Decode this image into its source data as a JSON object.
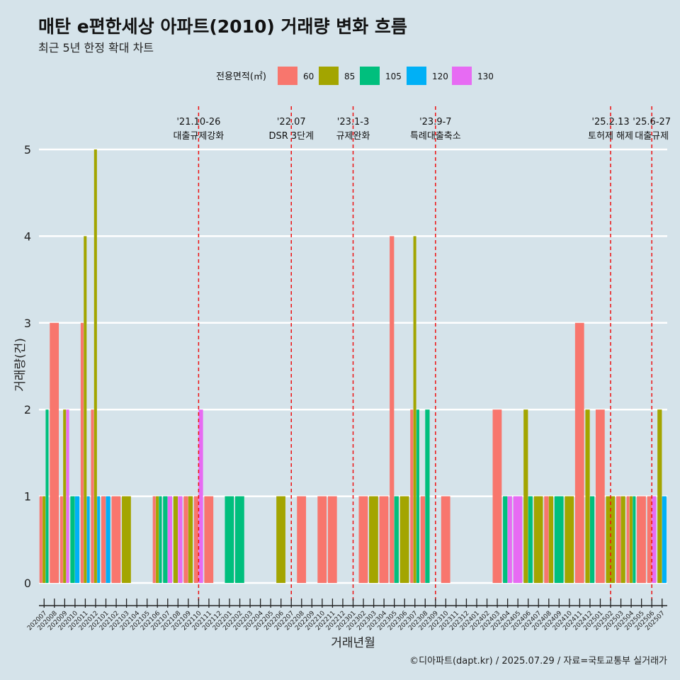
{
  "chart_data": {
    "type": "bar",
    "title": "매탄 e편한세상 아파트(2010) 거래량 변화 흐름",
    "subtitle": "최근 5년 한정 확대 차트",
    "xlabel": "거래년월",
    "ylabel": "거래량(건)",
    "caption": "©디아파트(dapt.kr) / 2025.07.29 / 자료=국토교통부 실거래가",
    "ylim": [
      0,
      5
    ],
    "yticks": [
      "0",
      "1",
      "2",
      "3",
      "4",
      "5"
    ],
    "legend": {
      "title": "전용면적(㎡)",
      "position": "top",
      "items": [
        {
          "label": "60",
          "color": "#f8766d"
        },
        {
          "label": "85",
          "color": "#a3a500"
        },
        {
          "label": "105",
          "color": "#00bf7d"
        },
        {
          "label": "120",
          "color": "#00b0f6"
        },
        {
          "label": "130",
          "color": "#e76bf3"
        }
      ]
    },
    "categories": [
      "202007",
      "202008",
      "202009",
      "202010",
      "202011",
      "202012",
      "202101",
      "202102",
      "202103",
      "202104",
      "202105",
      "202106",
      "202107",
      "202108",
      "202109",
      "202110",
      "202111",
      "202112",
      "202201",
      "202202",
      "202203",
      "202204",
      "202205",
      "202206",
      "202207",
      "202208",
      "202209",
      "202210",
      "202211",
      "202212",
      "202301",
      "202302",
      "202303",
      "202304",
      "202305",
      "202306",
      "202307",
      "202308",
      "202309",
      "202310",
      "202311",
      "202312",
      "202401",
      "202402",
      "202403",
      "202404",
      "202405",
      "202406",
      "202407",
      "202408",
      "202409",
      "202410",
      "202411",
      "202412",
      "202501",
      "202502",
      "202503",
      "202504",
      "202505",
      "202506",
      "202507"
    ],
    "series": [
      {
        "name": "60",
        "values": [
          1,
          3,
          1,
          0,
          3,
          2,
          1,
          1,
          0,
          0,
          0,
          1,
          0,
          0,
          1,
          1,
          1,
          0,
          0,
          0,
          0,
          0,
          0,
          0,
          0,
          1,
          0,
          1,
          1,
          0,
          0,
          1,
          0,
          1,
          4,
          0,
          2,
          1,
          0,
          1,
          0,
          0,
          0,
          0,
          2,
          0,
          0,
          0,
          0,
          1,
          0,
          0,
          3,
          0,
          2,
          0,
          1,
          1,
          1,
          1,
          0
        ]
      },
      {
        "name": "85",
        "values": [
          1,
          0,
          2,
          0,
          4,
          5,
          0,
          0,
          1,
          0,
          0,
          1,
          0,
          1,
          1,
          0,
          0,
          0,
          0,
          0,
          0,
          0,
          0,
          1,
          0,
          0,
          0,
          0,
          0,
          0,
          0,
          0,
          1,
          0,
          0,
          1,
          4,
          0,
          0,
          0,
          0,
          0,
          0,
          0,
          0,
          0,
          0,
          2,
          1,
          1,
          0,
          1,
          0,
          2,
          0,
          1,
          1,
          1,
          0,
          0,
          2
        ]
      },
      {
        "name": "105",
        "values": [
          2,
          0,
          0,
          1,
          0,
          0,
          0,
          0,
          0,
          0,
          0,
          1,
          1,
          0,
          0,
          0,
          0,
          0,
          1,
          1,
          0,
          0,
          0,
          0,
          0,
          0,
          0,
          0,
          0,
          0,
          0,
          0,
          0,
          0,
          1,
          0,
          2,
          2,
          0,
          0,
          0,
          0,
          0,
          0,
          0,
          1,
          0,
          1,
          0,
          0,
          1,
          0,
          0,
          1,
          0,
          0,
          0,
          1,
          0,
          0,
          0
        ]
      },
      {
        "name": "120",
        "values": [
          0,
          0,
          0,
          1,
          1,
          1,
          1,
          0,
          0,
          0,
          0,
          0,
          0,
          0,
          0,
          0,
          0,
          0,
          0,
          0,
          0,
          0,
          0,
          0,
          0,
          0,
          0,
          0,
          0,
          0,
          0,
          0,
          0,
          0,
          0,
          0,
          0,
          0,
          0,
          0,
          0,
          0,
          0,
          0,
          0,
          0,
          0,
          0,
          0,
          0,
          0,
          0,
          0,
          0,
          0,
          0,
          0,
          0,
          0,
          0,
          1
        ]
      },
      {
        "name": "130",
        "values": [
          0,
          0,
          2,
          0,
          0,
          0,
          0,
          0,
          0,
          0,
          0,
          0,
          1,
          1,
          0,
          2,
          0,
          0,
          0,
          0,
          0,
          0,
          0,
          0,
          0,
          0,
          0,
          0,
          0,
          0,
          0,
          0,
          0,
          0,
          0,
          0,
          0,
          0,
          0,
          0,
          0,
          0,
          0,
          0,
          0,
          1,
          1,
          0,
          0,
          0,
          0,
          0,
          0,
          0,
          0,
          0,
          0,
          0,
          0,
          1,
          0
        ]
      }
    ],
    "events": [
      {
        "x": "202110",
        "date": "'21.10-26",
        "label": "대출규제강화"
      },
      {
        "x": "202207",
        "date": "'22.07",
        "label": "DSR 3단계"
      },
      {
        "x": "202301",
        "date": "'23.1-3",
        "label": "규제완화"
      },
      {
        "x": "202309",
        "date": "'23.9-7",
        "label": "특례대출축소"
      },
      {
        "x": "202502",
        "date": "'25.2.13",
        "label": "토허제 해제"
      },
      {
        "x": "202506",
        "date": "'25.6-27",
        "label": "대출규제"
      }
    ]
  }
}
